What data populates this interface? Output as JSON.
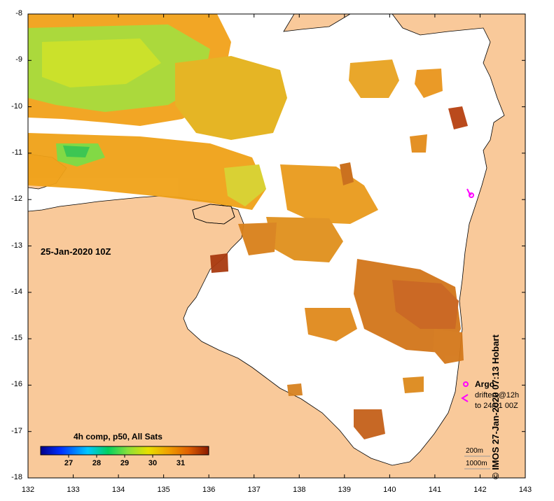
{
  "map": {
    "date_label": "25-Jan-2020 10Z",
    "lat_ticks": [
      "-8",
      "-9",
      "-10",
      "-11",
      "-12",
      "-13",
      "-14",
      "-15",
      "-16",
      "-17",
      "-18"
    ],
    "lon_ticks": [
      "132",
      "133",
      "134",
      "135",
      "136",
      "137",
      "138",
      "139",
      "140",
      "141",
      "142",
      "143"
    ],
    "credit": "© IMOS 27-Jan-2020 07:13 Hobart"
  },
  "colorbar": {
    "title": "4h comp, p50, All Sats",
    "ticks": [
      "27",
      "28",
      "29",
      "30",
      "31"
    ],
    "range": [
      26,
      32
    ]
  },
  "legend": {
    "argo_label": "Argo",
    "drifters_line1": "drifters@12h",
    "drifters_line2": "to 24/01 00Z",
    "scale_200": "200m",
    "scale_1000": "1000m"
  },
  "colors": {
    "land": "#f9c99a",
    "water_nodata": "#ffffff",
    "marker": "#ff00ff"
  }
}
